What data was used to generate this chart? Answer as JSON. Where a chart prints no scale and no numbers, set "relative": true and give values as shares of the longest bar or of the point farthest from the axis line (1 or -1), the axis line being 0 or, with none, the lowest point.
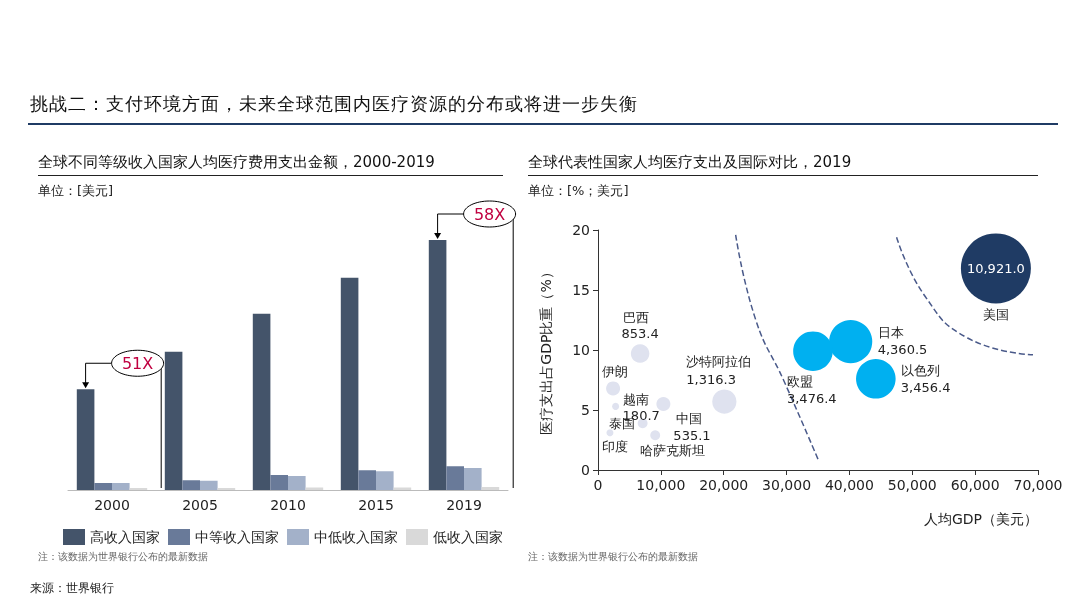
{
  "chart_data": [
    {
      "type": "bar",
      "title": "全球不同等级收入国家人均医疗费用支出金额，2000-2019",
      "subtitle": "单位：[美元]",
      "relative": true,
      "categories": [
        "2000",
        "2005",
        "2010",
        "2015",
        "2019"
      ],
      "legend": "bottom",
      "grid": false,
      "series": [
        {
          "name": "高收入国家",
          "color": "#44546a",
          "values": [
            0.403,
            0.553,
            0.705,
            0.849,
            1
          ]
        },
        {
          "name": "中等收入国家",
          "color": "#697a99",
          "values": [
            0.028,
            0.039,
            0.06,
            0.079,
            0.095
          ]
        },
        {
          "name": "中低收入国家",
          "color": "#a3b1c9",
          "values": [
            0.028,
            0.037,
            0.056,
            0.075,
            0.088
          ]
        },
        {
          "name": "低收入国家",
          "color": "#d9d9d9",
          "values": [
            0.008,
            0.008,
            0.01,
            0.01,
            0.012
          ]
        }
      ],
      "annotations": [
        "挑战二：支付环境方面，未来全球范围内医疗资源的分布或将进一步失衡",
        "51X",
        "58X",
        "注：该数据为世界银行公布的最新数据",
        "来源：世界银行"
      ]
    },
    {
      "type": "bubble",
      "title": "全球代表性国家人均医疗支出及国际对比，2019",
      "subtitle": "单位：[%；美元]",
      "xlabel": "人均GDP（美元）",
      "ylabel": "医疗支出占GDP比重（%）",
      "xlim": [
        0,
        70000
      ],
      "ylim": [
        0,
        20
      ],
      "grid": false,
      "legend": false,
      "xticks": [
        0,
        {
          "value": 10000,
          "label": "10,000"
        },
        {
          "value": 20000,
          "label": "20,000"
        },
        {
          "value": 30000,
          "label": "30,000"
        },
        {
          "value": 40000,
          "label": "40,000"
        },
        {
          "value": 50000,
          "label": "50,000"
        },
        {
          "value": 60000,
          "label": "60,000"
        },
        {
          "value": 70000,
          "label": "70,000"
        }
      ],
      "yticks": [
        0,
        5,
        10,
        15,
        20
      ],
      "series": [
        {
          "name": "美国",
          "color": "#1f3b64",
          "x": [
            63300
          ],
          "values": [
            16.8
          ],
          "sizes": [
            1
          ]
        },
        {
          "name": "日本",
          "color": "#00b0f0",
          "x": [
            40200
          ],
          "values": [
            10.7
          ],
          "sizes": [
            0.38
          ]
        },
        {
          "name": "欧盟",
          "color": "#00b0f0",
          "x": [
            34200
          ],
          "values": [
            9.9
          ],
          "sizes": [
            0.32
          ]
        },
        {
          "name": "以色列",
          "color": "#00b0f0",
          "x": [
            44200
          ],
          "values": [
            7.6
          ],
          "sizes": [
            0.32
          ]
        },
        {
          "name": "沙特阿拉伯",
          "color": "#dfe2ef",
          "x": [
            20100
          ],
          "values": [
            5.7
          ],
          "sizes": [
            0.12
          ]
        },
        {
          "name": "巴西",
          "color": "#dfe2ef",
          "x": [
            6700
          ],
          "values": [
            9.7
          ],
          "sizes": [
            0.07
          ]
        },
        {
          "name": "伊朗",
          "color": "#dfe2ef",
          "x": [
            2400
          ],
          "values": [
            6.8
          ],
          "sizes": [
            0.04
          ]
        },
        {
          "name": "越南",
          "color": "#dfe2ef",
          "x": [
            2800
          ],
          "values": [
            5.3
          ],
          "sizes": [
            0.01
          ]
        },
        {
          "name": "中国",
          "color": "#dfe2ef",
          "x": [
            10400
          ],
          "values": [
            5.5
          ],
          "sizes": [
            0.04
          ]
        },
        {
          "name": "泰国",
          "color": "#dfe2ef",
          "x": [
            7100
          ],
          "values": [
            3.9
          ],
          "sizes": [
            0.02
          ]
        },
        {
          "name": "印度",
          "color": "#dfe2ef",
          "x": [
            1900
          ],
          "values": [
            3.1
          ],
          "sizes": [
            0.01
          ]
        },
        {
          "name": "哈萨克斯坦",
          "color": "#dfe2ef",
          "x": [
            9100
          ],
          "values": [
            2.9
          ],
          "sizes": [
            0.02
          ]
        },
        {
          "type": "line",
          "color": "#4a5a8a",
          "line_style": "dashed",
          "marker": "none",
          "x": [
            21900,
            25100,
            29600,
            35000
          ],
          "values": [
            19.6,
            12.5,
            7.4,
            0.9
          ]
        },
        {
          "type": "line",
          "color": "#4a5a8a",
          "line_style": "dashed",
          "marker": "none",
          "x": [
            47500,
            52000,
            58800,
            69200
          ],
          "values": [
            19.4,
            14.5,
            11.0,
            9.6
          ]
        }
      ],
      "annotations": [
        {
          "text": "10,921.0",
          "x": 63300,
          "y": 16.8
        },
        {
          "text": "4,360.5",
          "x": 40200,
          "y": 10.7
        },
        {
          "text": "3,476.4",
          "x": 34200,
          "y": 9.9
        },
        {
          "text": "3,456.4",
          "x": 44200,
          "y": 7.6
        },
        {
          "text": "1,316.3",
          "x": 20100,
          "y": 5.7
        },
        {
          "text": "853.4",
          "x": 6700,
          "y": 9.7
        },
        {
          "text": "180.7",
          "x": 2800,
          "y": 5.3
        },
        {
          "text": "535.1",
          "x": 10400,
          "y": 5.5
        },
        "注：该数据为世界银行公布的最新数据"
      ]
    }
  ]
}
